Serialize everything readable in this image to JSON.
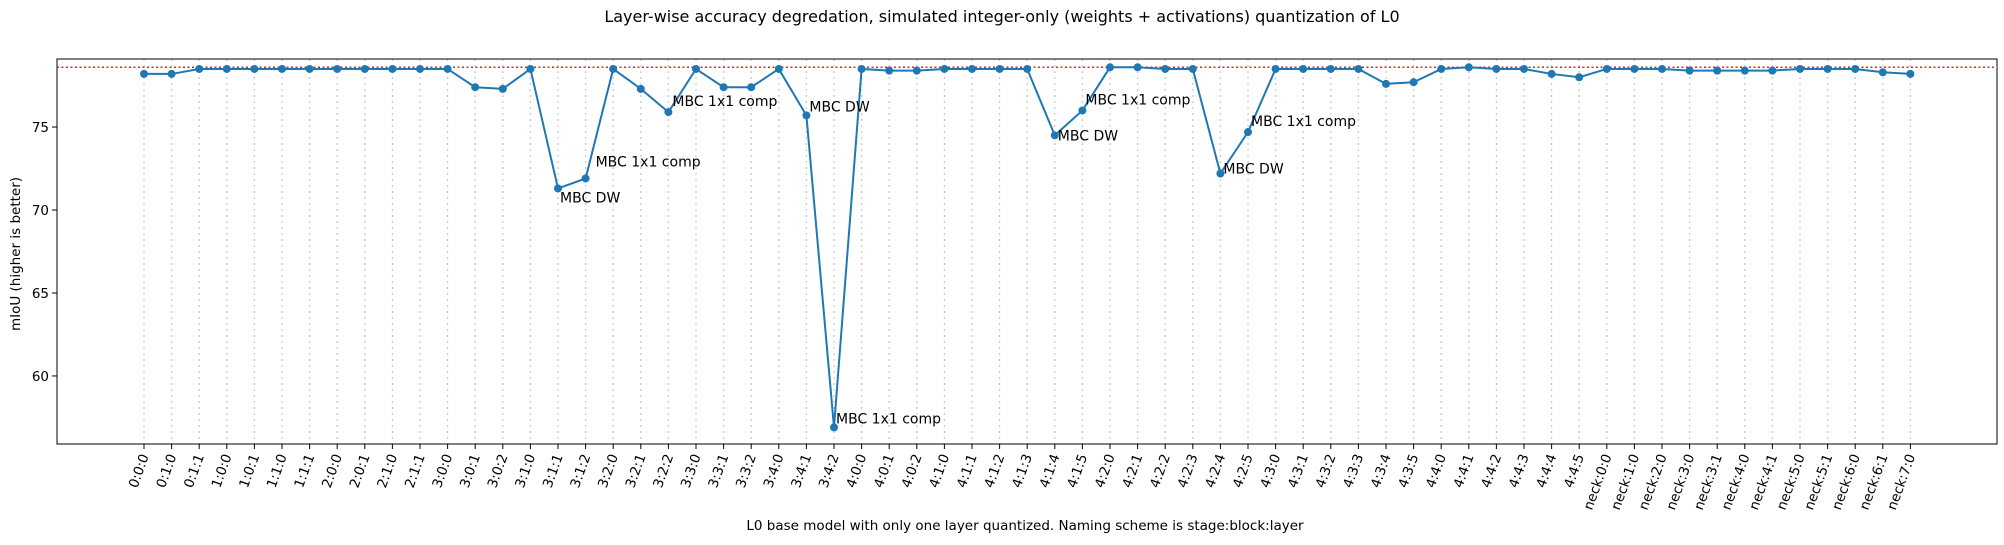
{
  "chart_data": {
    "type": "line",
    "title": "Layer-wise accuracy degredation, simulated integer-only (weights + activations) quantization of L0",
    "xlabel": "L0 base model with only one layer quantized. Naming scheme is stage:block:layer",
    "ylabel": "mIoU (higher is better)",
    "ylim": [
      55.9,
      79.1
    ],
    "yticks": [
      60,
      65,
      70,
      75
    ],
    "grid": "vertical-dotted",
    "baseline": 78.6,
    "line_color": "#1f77b4",
    "baseline_color": "#d62728",
    "categories": [
      "0:0:0",
      "0:1:0",
      "0:1:1",
      "1:0:0",
      "1:0:1",
      "1:1:0",
      "1:1:1",
      "2:0:0",
      "2:0:1",
      "2:1:0",
      "2:1:1",
      "3:0:0",
      "3:0:1",
      "3:0:2",
      "3:1:0",
      "3:1:1",
      "3:1:2",
      "3:2:0",
      "3:2:1",
      "3:2:2",
      "3:3:0",
      "3:3:1",
      "3:3:2",
      "3:4:0",
      "3:4:1",
      "3:4:2",
      "4:0:0",
      "4:0:1",
      "4:0:2",
      "4:1:0",
      "4:1:1",
      "4:1:2",
      "4:1:3",
      "4:1:4",
      "4:1:5",
      "4:2:0",
      "4:2:1",
      "4:2:2",
      "4:2:3",
      "4:2:4",
      "4:2:5",
      "4:3:0",
      "4:3:1",
      "4:3:2",
      "4:3:3",
      "4:3:4",
      "4:3:5",
      "4:4:0",
      "4:4:1",
      "4:4:2",
      "4:4:3",
      "4:4:4",
      "4:4:5",
      "neck:0:0",
      "neck:1:0",
      "neck:2:0",
      "neck:3:0",
      "neck:3:1",
      "neck:4:0",
      "neck:4:1",
      "neck:5:0",
      "neck:5:1",
      "neck:6:0",
      "neck:6:1",
      "neck:7:0"
    ],
    "values": [
      78.2,
      78.2,
      78.5,
      78.5,
      78.5,
      78.5,
      78.5,
      78.5,
      78.5,
      78.5,
      78.5,
      78.5,
      77.4,
      77.3,
      78.5,
      71.3,
      71.9,
      78.5,
      77.3,
      75.9,
      78.5,
      77.4,
      77.4,
      78.5,
      75.7,
      56.9,
      78.5,
      78.4,
      78.4,
      78.5,
      78.5,
      78.5,
      78.5,
      74.5,
      76.0,
      78.6,
      78.6,
      78.5,
      78.5,
      72.2,
      74.7,
      78.5,
      78.5,
      78.5,
      78.5,
      77.6,
      77.7,
      78.5,
      78.6,
      78.5,
      78.5,
      78.2,
      78.0,
      78.5,
      78.5,
      78.5,
      78.4,
      78.4,
      78.4,
      78.4,
      78.5,
      78.5,
      78.5,
      78.3,
      78.2
    ],
    "annotations": [
      {
        "index": 15,
        "text": "MBC DW",
        "dx": 2,
        "dy": 14
      },
      {
        "index": 16,
        "text": "MBC 1x1 comp",
        "dx": 10,
        "dy": -12
      },
      {
        "index": 19,
        "text": "MBC 1x1 comp",
        "dx": 4,
        "dy": -6
      },
      {
        "index": 24,
        "text": "MBC DW",
        "dx": 3,
        "dy": -4
      },
      {
        "index": 25,
        "text": "MBC 1x1 comp",
        "dx": 2,
        "dy": -4
      },
      {
        "index": 33,
        "text": "MBC DW",
        "dx": 3,
        "dy": 5
      },
      {
        "index": 34,
        "text": "MBC 1x1 comp",
        "dx": 3,
        "dy": -6
      },
      {
        "index": 39,
        "text": "MBC DW",
        "dx": 3,
        "dy": 0
      },
      {
        "index": 40,
        "text": "MBC 1x1 comp",
        "dx": 3,
        "dy": -6
      }
    ]
  }
}
